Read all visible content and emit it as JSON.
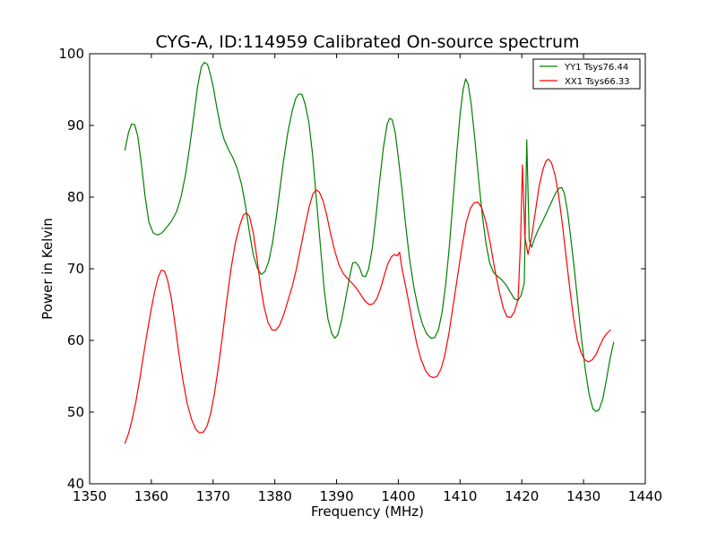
{
  "chart_data": {
    "type": "line",
    "title": "CYG-A, ID:114959 Calibrated On-source spectrum",
    "xlabel": "Frequency (MHz)",
    "ylabel": "Power in Kelvin",
    "xlim": [
      1350,
      1440
    ],
    "ylim": [
      40,
      100
    ],
    "xticks": [
      1350,
      1360,
      1370,
      1380,
      1390,
      1400,
      1410,
      1420,
      1430,
      1440
    ],
    "yticks": [
      40,
      50,
      60,
      70,
      80,
      90,
      100
    ],
    "grid": false,
    "legend_position": "top-right",
    "series": [
      {
        "name": "YY1 Tsys76.44",
        "color": "#008000",
        "points": [
          [
            1355.7,
            86.5
          ],
          [
            1356.3,
            89.0
          ],
          [
            1356.8,
            90.2
          ],
          [
            1357.3,
            90.1
          ],
          [
            1357.8,
            88.5
          ],
          [
            1358.4,
            84.5
          ],
          [
            1359.0,
            80.0
          ],
          [
            1359.6,
            76.5
          ],
          [
            1360.3,
            75.0
          ],
          [
            1361.0,
            74.7
          ],
          [
            1361.7,
            75.0
          ],
          [
            1362.5,
            75.8
          ],
          [
            1363.3,
            76.7
          ],
          [
            1364.1,
            78.0
          ],
          [
            1364.8,
            80.0
          ],
          [
            1365.5,
            83.0
          ],
          [
            1366.2,
            87.0
          ],
          [
            1366.9,
            91.5
          ],
          [
            1367.5,
            95.5
          ],
          [
            1368.1,
            98.2
          ],
          [
            1368.6,
            98.8
          ],
          [
            1369.1,
            98.5
          ],
          [
            1369.6,
            97.0
          ],
          [
            1370.1,
            95.0
          ],
          [
            1370.6,
            92.5
          ],
          [
            1371.2,
            89.8
          ],
          [
            1371.8,
            88.0
          ],
          [
            1372.5,
            86.6
          ],
          [
            1373.2,
            85.5
          ],
          [
            1373.9,
            84.0
          ],
          [
            1374.6,
            81.8
          ],
          [
            1375.2,
            79.0
          ],
          [
            1375.9,
            75.0
          ],
          [
            1376.5,
            72.0
          ],
          [
            1377.2,
            70.0
          ],
          [
            1377.8,
            69.2
          ],
          [
            1378.4,
            69.6
          ],
          [
            1379.0,
            71.0
          ],
          [
            1379.6,
            73.5
          ],
          [
            1380.2,
            77.0
          ],
          [
            1380.8,
            81.0
          ],
          [
            1381.4,
            85.0
          ],
          [
            1382.1,
            89.0
          ],
          [
            1382.8,
            92.0
          ],
          [
            1383.4,
            93.8
          ],
          [
            1383.9,
            94.4
          ],
          [
            1384.4,
            94.3
          ],
          [
            1384.9,
            93.0
          ],
          [
            1385.5,
            90.5
          ],
          [
            1386.1,
            86.0
          ],
          [
            1386.7,
            80.0
          ],
          [
            1387.4,
            73.0
          ],
          [
            1388.0,
            67.0
          ],
          [
            1388.6,
            63.0
          ],
          [
            1389.2,
            61.0
          ],
          [
            1389.7,
            60.3
          ],
          [
            1390.2,
            60.8
          ],
          [
            1390.8,
            62.8
          ],
          [
            1391.4,
            65.5
          ],
          [
            1392.1,
            68.8
          ],
          [
            1392.6,
            70.8
          ],
          [
            1393.1,
            70.9
          ],
          [
            1393.7,
            70.2
          ],
          [
            1394.2,
            69.0
          ],
          [
            1394.7,
            68.9
          ],
          [
            1395.2,
            70.0
          ],
          [
            1395.8,
            73.0
          ],
          [
            1396.4,
            77.5
          ],
          [
            1397.0,
            82.5
          ],
          [
            1397.6,
            87.0
          ],
          [
            1398.2,
            90.2
          ],
          [
            1398.6,
            91.0
          ],
          [
            1399.0,
            90.8
          ],
          [
            1399.5,
            89.0
          ],
          [
            1400.0,
            85.5
          ],
          [
            1400.6,
            81.0
          ],
          [
            1401.2,
            76.0
          ],
          [
            1401.8,
            71.5
          ],
          [
            1402.5,
            67.5
          ],
          [
            1403.2,
            64.5
          ],
          [
            1403.9,
            62.3
          ],
          [
            1404.6,
            60.9
          ],
          [
            1405.3,
            60.3
          ],
          [
            1405.9,
            60.4
          ],
          [
            1406.5,
            61.5
          ],
          [
            1407.1,
            64.0
          ],
          [
            1407.7,
            68.0
          ],
          [
            1408.3,
            73.5
          ],
          [
            1408.9,
            80.0
          ],
          [
            1409.5,
            86.5
          ],
          [
            1410.0,
            91.5
          ],
          [
            1410.5,
            95.0
          ],
          [
            1410.9,
            96.5
          ],
          [
            1411.3,
            95.8
          ],
          [
            1411.8,
            93.0
          ],
          [
            1412.4,
            88.0
          ],
          [
            1413.0,
            82.5
          ],
          [
            1413.6,
            77.5
          ],
          [
            1414.2,
            73.5
          ],
          [
            1414.8,
            70.8
          ],
          [
            1415.4,
            69.5
          ],
          [
            1416.0,
            69.0
          ],
          [
            1416.7,
            68.5
          ],
          [
            1417.4,
            67.8
          ],
          [
            1418.1,
            66.8
          ],
          [
            1418.8,
            65.8
          ],
          [
            1419.4,
            65.6
          ],
          [
            1419.9,
            66.3
          ],
          [
            1420.4,
            68.0
          ],
          [
            1420.8,
            88.0
          ],
          [
            1421.2,
            74.0
          ],
          [
            1421.6,
            73.0
          ],
          [
            1422.1,
            74.3
          ],
          [
            1422.7,
            75.5
          ],
          [
            1423.4,
            76.7
          ],
          [
            1424.1,
            78.0
          ],
          [
            1424.8,
            79.3
          ],
          [
            1425.5,
            80.6
          ],
          [
            1426.1,
            81.3
          ],
          [
            1426.5,
            81.3
          ],
          [
            1426.9,
            80.5
          ],
          [
            1427.4,
            78.0
          ],
          [
            1427.9,
            74.5
          ],
          [
            1428.5,
            70.0
          ],
          [
            1429.1,
            65.0
          ],
          [
            1429.7,
            60.0
          ],
          [
            1430.3,
            55.8
          ],
          [
            1430.9,
            52.5
          ],
          [
            1431.5,
            50.5
          ],
          [
            1432.0,
            50.1
          ],
          [
            1432.5,
            50.3
          ],
          [
            1433.1,
            51.8
          ],
          [
            1433.7,
            54.5
          ],
          [
            1434.3,
            57.5
          ],
          [
            1434.9,
            59.8
          ]
        ]
      },
      {
        "name": "XX1 Tsys66.33",
        "color": "#ff0000",
        "points": [
          [
            1355.7,
            45.6
          ],
          [
            1356.3,
            47.0
          ],
          [
            1356.9,
            49.0
          ],
          [
            1357.5,
            51.5
          ],
          [
            1358.1,
            54.5
          ],
          [
            1358.7,
            57.8
          ],
          [
            1359.3,
            61.0
          ],
          [
            1359.9,
            64.0
          ],
          [
            1360.5,
            66.7
          ],
          [
            1361.1,
            68.8
          ],
          [
            1361.6,
            69.8
          ],
          [
            1362.1,
            69.7
          ],
          [
            1362.6,
            68.5
          ],
          [
            1363.2,
            66.0
          ],
          [
            1363.8,
            62.5
          ],
          [
            1364.4,
            58.5
          ],
          [
            1365.1,
            54.5
          ],
          [
            1365.8,
            51.2
          ],
          [
            1366.5,
            49.0
          ],
          [
            1367.2,
            47.6
          ],
          [
            1367.8,
            47.1
          ],
          [
            1368.4,
            47.2
          ],
          [
            1369.0,
            48.0
          ],
          [
            1369.6,
            49.8
          ],
          [
            1370.2,
            52.5
          ],
          [
            1370.8,
            56.0
          ],
          [
            1371.5,
            60.5
          ],
          [
            1372.2,
            65.5
          ],
          [
            1372.9,
            70.0
          ],
          [
            1373.6,
            73.6
          ],
          [
            1374.3,
            76.0
          ],
          [
            1374.9,
            77.5
          ],
          [
            1375.4,
            77.8
          ],
          [
            1375.9,
            77.3
          ],
          [
            1376.5,
            75.0
          ],
          [
            1377.1,
            71.5
          ],
          [
            1377.7,
            67.5
          ],
          [
            1378.3,
            64.5
          ],
          [
            1378.9,
            62.5
          ],
          [
            1379.5,
            61.5
          ],
          [
            1380.1,
            61.4
          ],
          [
            1380.7,
            62.0
          ],
          [
            1381.4,
            63.5
          ],
          [
            1382.1,
            65.5
          ],
          [
            1382.8,
            67.5
          ],
          [
            1383.5,
            70.0
          ],
          [
            1384.2,
            73.0
          ],
          [
            1384.9,
            76.0
          ],
          [
            1385.6,
            78.8
          ],
          [
            1386.2,
            80.5
          ],
          [
            1386.7,
            81.0
          ],
          [
            1387.2,
            80.7
          ],
          [
            1387.8,
            79.5
          ],
          [
            1388.4,
            77.5
          ],
          [
            1389.0,
            75.0
          ],
          [
            1389.7,
            72.5
          ],
          [
            1390.4,
            70.5
          ],
          [
            1391.1,
            69.3
          ],
          [
            1391.8,
            68.6
          ],
          [
            1392.5,
            68.0
          ],
          [
            1393.2,
            67.3
          ],
          [
            1393.9,
            66.4
          ],
          [
            1394.6,
            65.5
          ],
          [
            1395.3,
            65.0
          ],
          [
            1395.9,
            65.1
          ],
          [
            1396.5,
            65.8
          ],
          [
            1397.1,
            67.2
          ],
          [
            1397.7,
            69.0
          ],
          [
            1398.3,
            70.7
          ],
          [
            1398.9,
            71.7
          ],
          [
            1399.4,
            72.0
          ],
          [
            1399.8,
            71.8
          ],
          [
            1400.2,
            72.3
          ],
          [
            1400.6,
            70.0
          ],
          [
            1401.2,
            67.5
          ],
          [
            1401.8,
            64.8
          ],
          [
            1402.4,
            62.0
          ],
          [
            1403.0,
            59.5
          ],
          [
            1403.7,
            57.3
          ],
          [
            1404.4,
            55.8
          ],
          [
            1405.1,
            55.0
          ],
          [
            1405.7,
            54.8
          ],
          [
            1406.3,
            55.0
          ],
          [
            1406.9,
            56.0
          ],
          [
            1407.5,
            57.8
          ],
          [
            1408.2,
            61.0
          ],
          [
            1408.9,
            65.0
          ],
          [
            1409.6,
            69.0
          ],
          [
            1410.3,
            73.0
          ],
          [
            1411.0,
            76.5
          ],
          [
            1411.7,
            78.5
          ],
          [
            1412.3,
            79.2
          ],
          [
            1412.9,
            79.3
          ],
          [
            1413.5,
            78.5
          ],
          [
            1414.2,
            76.5
          ],
          [
            1414.9,
            73.5
          ],
          [
            1415.6,
            70.0
          ],
          [
            1416.3,
            67.0
          ],
          [
            1417.0,
            64.5
          ],
          [
            1417.6,
            63.3
          ],
          [
            1418.2,
            63.2
          ],
          [
            1418.8,
            64.0
          ],
          [
            1419.4,
            65.8
          ],
          [
            1419.8,
            74.0
          ],
          [
            1420.1,
            84.5
          ],
          [
            1420.5,
            74.5
          ],
          [
            1421.0,
            72.0
          ],
          [
            1421.6,
            74.5
          ],
          [
            1422.2,
            78.0
          ],
          [
            1422.8,
            81.5
          ],
          [
            1423.4,
            83.8
          ],
          [
            1423.9,
            85.0
          ],
          [
            1424.3,
            85.3
          ],
          [
            1424.8,
            84.8
          ],
          [
            1425.4,
            83.0
          ],
          [
            1426.0,
            80.0
          ],
          [
            1426.6,
            76.0
          ],
          [
            1427.2,
            71.5
          ],
          [
            1427.8,
            67.0
          ],
          [
            1428.4,
            63.0
          ],
          [
            1429.0,
            60.0
          ],
          [
            1429.6,
            58.3
          ],
          [
            1430.2,
            57.3
          ],
          [
            1430.8,
            57.0
          ],
          [
            1431.4,
            57.3
          ],
          [
            1432.0,
            58.0
          ],
          [
            1432.6,
            59.2
          ],
          [
            1433.2,
            60.3
          ],
          [
            1433.8,
            61.0
          ],
          [
            1434.4,
            61.5
          ]
        ]
      }
    ]
  }
}
